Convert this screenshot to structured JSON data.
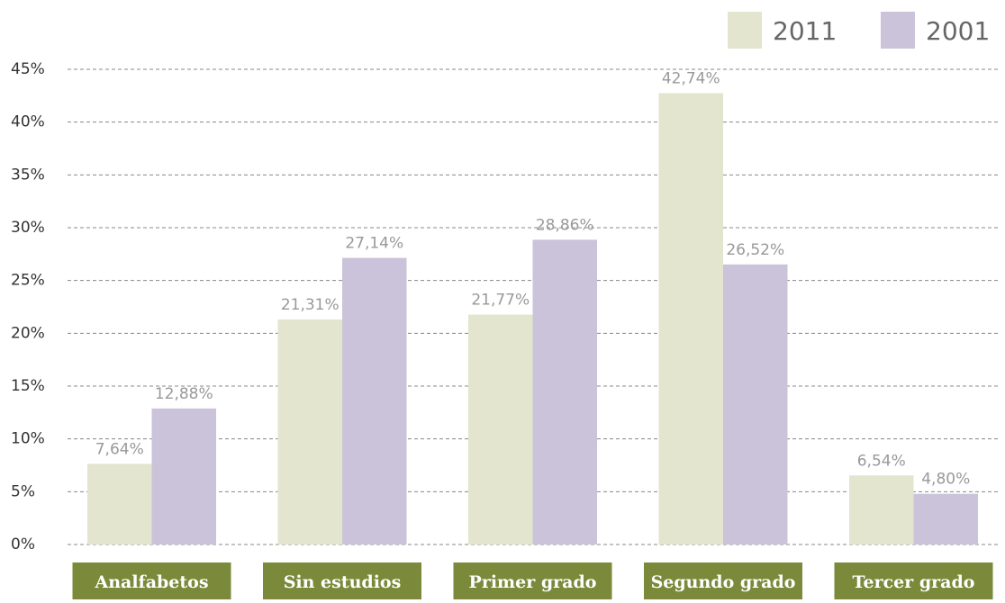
{
  "chart_data": {
    "type": "bar",
    "categories": [
      "Analfabetos",
      "Sin estudios",
      "Primer grado",
      "Segundo grado",
      "Tercer grado"
    ],
    "series": [
      {
        "name": "2011",
        "color": "#e3e5cf",
        "values": [
          7.64,
          21.31,
          21.77,
          42.74,
          6.54
        ],
        "value_labels": [
          "7,64%",
          "21,31%",
          "21,77%",
          "42,74%",
          "6,54%"
        ]
      },
      {
        "name": "2001",
        "color": "#cbc3da",
        "values": [
          12.88,
          27.14,
          28.86,
          26.52,
          4.8
        ],
        "value_labels": [
          "12,88%",
          "27,14%",
          "28,86%",
          "26,52%",
          "4,80%"
        ]
      }
    ],
    "ylim": [
      0,
      45
    ],
    "yticks": [
      {
        "value": 0,
        "label": "0%"
      },
      {
        "value": 5,
        "label": "5%"
      },
      {
        "value": 10,
        "label": "10%"
      },
      {
        "value": 15,
        "label": "15%"
      },
      {
        "value": 20,
        "label": "20%"
      },
      {
        "value": 25,
        "label": "25%"
      },
      {
        "value": 30,
        "label": "30%"
      },
      {
        "value": 35,
        "label": "35%"
      },
      {
        "value": 40,
        "label": "40%"
      },
      {
        "value": 45,
        "label": "45%"
      }
    ],
    "grid": true,
    "legend": "top-right",
    "category_color": "#7a8a3a"
  }
}
